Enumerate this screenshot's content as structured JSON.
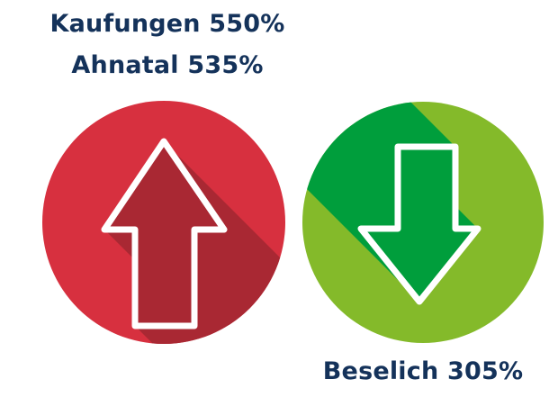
{
  "increase": {
    "labels": [
      "Kaufungen 550%",
      "Ahnatal 535%"
    ],
    "icon": "arrow-up-icon",
    "colors": {
      "circle": "#d7303f",
      "shadow": "#a92833"
    }
  },
  "decrease": {
    "labels": [
      "Beselich 305%"
    ],
    "icon": "arrow-down-icon",
    "colors": {
      "circle": "#84ba2a",
      "shadow": "#009e3c"
    }
  },
  "text_color": "#14325a"
}
